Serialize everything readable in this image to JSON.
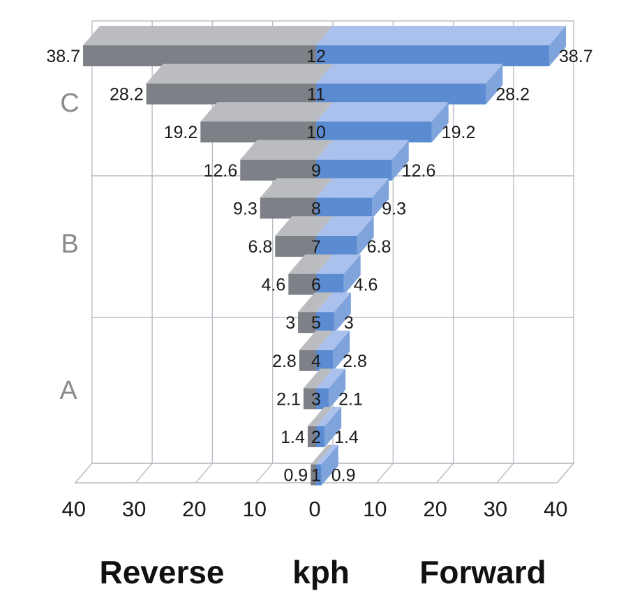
{
  "chart_data": {
    "type": "bar",
    "orientation": "horizontal-mirrored",
    "categories": [
      "12",
      "11",
      "10",
      "9",
      "8",
      "7",
      "6",
      "5",
      "4",
      "3",
      "2",
      "1"
    ],
    "series": [
      {
        "name": "Reverse",
        "side": "left",
        "color": "#7e8087",
        "top_color": "#bbbcc0",
        "values": [
          38.7,
          28.2,
          19.2,
          12.6,
          9.3,
          6.8,
          4.6,
          3,
          2.8,
          2.1,
          1.4,
          0.9
        ]
      },
      {
        "name": "Forward",
        "side": "right",
        "color": "#5b8bd0",
        "top_color": "#a9c1ec",
        "values": [
          38.7,
          28.2,
          19.2,
          12.6,
          9.3,
          6.8,
          4.6,
          3,
          2.8,
          2.1,
          1.4,
          0.9
        ]
      }
    ],
    "value_labels": [
      "38.7",
      "28.2",
      "19.2",
      "12.6",
      "9.3",
      "6.8",
      "4.6",
      "3",
      "2.8",
      "2.1",
      "1.4",
      "0.9"
    ],
    "x_ticks": [
      40,
      30,
      20,
      10,
      0,
      10,
      20,
      30,
      40
    ],
    "xlim": [
      -40,
      40
    ],
    "range_labels": [
      "C",
      "B",
      "A"
    ],
    "axis_labels": {
      "left": "Reverse",
      "center": "kph",
      "right": "Forward"
    },
    "grid": true,
    "three_d": true
  }
}
